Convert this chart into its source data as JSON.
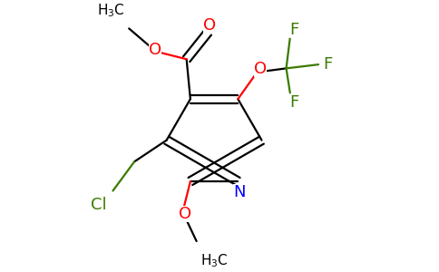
{
  "background_color": "#ffffff",
  "bond_color": "#000000",
  "atom_colors": {
    "N": "#0000ff",
    "O": "#ff0000",
    "F": "#3a7a00",
    "Cl": "#3a7a00"
  }
}
